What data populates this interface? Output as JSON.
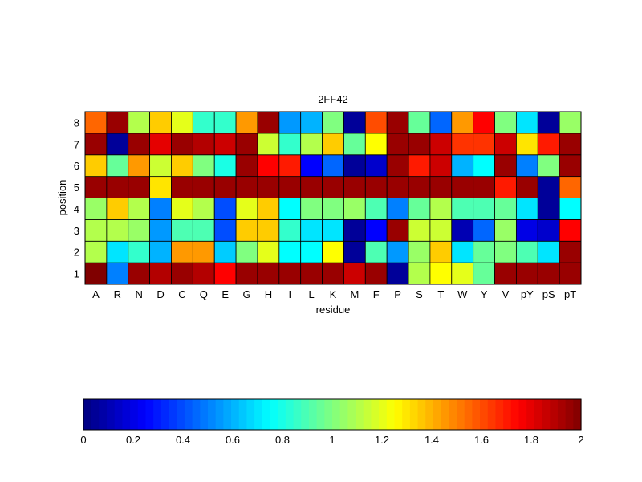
{
  "chart_data": {
    "type": "heatmap",
    "title": "2FF42",
    "xlabel": "residue",
    "ylabel": "position",
    "x_categories": [
      "A",
      "R",
      "N",
      "D",
      "C",
      "Q",
      "E",
      "G",
      "H",
      "I",
      "L",
      "K",
      "M",
      "F",
      "P",
      "S",
      "T",
      "W",
      "Y",
      "V",
      "pY",
      "pS",
      "pT"
    ],
    "y_categories": [
      "1",
      "2",
      "3",
      "4",
      "5",
      "6",
      "7",
      "8"
    ],
    "values": [
      [
        2.0,
        0.5,
        1.95,
        1.9,
        1.95,
        1.9,
        1.75,
        1.95,
        1.95,
        1.95,
        1.95,
        1.95,
        1.85,
        1.95,
        0.05,
        1.1,
        1.25,
        1.2,
        0.95,
        1.95,
        1.95,
        1.95,
        1.95
      ],
      [
        1.1,
        0.7,
        0.85,
        0.6,
        1.45,
        1.45,
        0.65,
        1.0,
        1.2,
        0.75,
        0.75,
        1.25,
        0.05,
        0.9,
        0.55,
        1.05,
        1.35,
        0.7,
        0.95,
        1.0,
        0.9,
        0.7,
        1.95
      ],
      [
        1.1,
        1.1,
        1.05,
        0.55,
        0.9,
        0.9,
        0.4,
        1.35,
        1.35,
        0.85,
        0.7,
        0.7,
        0.05,
        0.25,
        1.95,
        1.15,
        1.15,
        0.1,
        0.45,
        1.05,
        0.2,
        0.15,
        1.75
      ],
      [
        1.05,
        1.35,
        1.1,
        0.5,
        1.2,
        1.1,
        0.4,
        1.2,
        1.35,
        0.75,
        1.0,
        1.0,
        1.05,
        0.9,
        0.5,
        0.95,
        1.1,
        0.9,
        0.9,
        0.95,
        0.7,
        0.05,
        0.75
      ],
      [
        1.95,
        1.95,
        1.95,
        1.3,
        1.95,
        1.95,
        1.95,
        1.95,
        1.95,
        1.95,
        1.95,
        1.95,
        1.95,
        1.95,
        1.95,
        1.95,
        1.95,
        1.95,
        1.95,
        1.7,
        1.95,
        0.05,
        1.55
      ],
      [
        1.35,
        0.95,
        1.45,
        1.15,
        1.35,
        1.0,
        0.8,
        1.95,
        1.75,
        1.7,
        0.25,
        0.45,
        0.05,
        0.15,
        1.95,
        1.7,
        1.85,
        0.6,
        0.75,
        1.95,
        0.5,
        1.0,
        1.95
      ],
      [
        1.95,
        0.05,
        1.95,
        1.8,
        1.95,
        1.9,
        1.85,
        1.95,
        1.15,
        0.85,
        1.1,
        1.35,
        0.95,
        1.25,
        1.95,
        1.95,
        1.85,
        1.65,
        1.65,
        1.85,
        1.3,
        1.7,
        1.95
      ],
      [
        1.55,
        1.95,
        1.1,
        1.35,
        1.2,
        0.85,
        0.85,
        1.45,
        1.95,
        0.55,
        0.6,
        1.0,
        0.05,
        1.6,
        1.95,
        0.95,
        0.45,
        1.45,
        1.75,
        1.0,
        0.7,
        0.05,
        1.05
      ]
    ],
    "colorbar": {
      "range": [
        0,
        2
      ],
      "ticks": [
        "0",
        "0.2",
        "0.4",
        "0.6",
        "0.8",
        "1",
        "1.2",
        "1.4",
        "1.6",
        "1.8",
        "2"
      ],
      "colormap": "jet"
    },
    "grid": true,
    "legend": "none"
  }
}
